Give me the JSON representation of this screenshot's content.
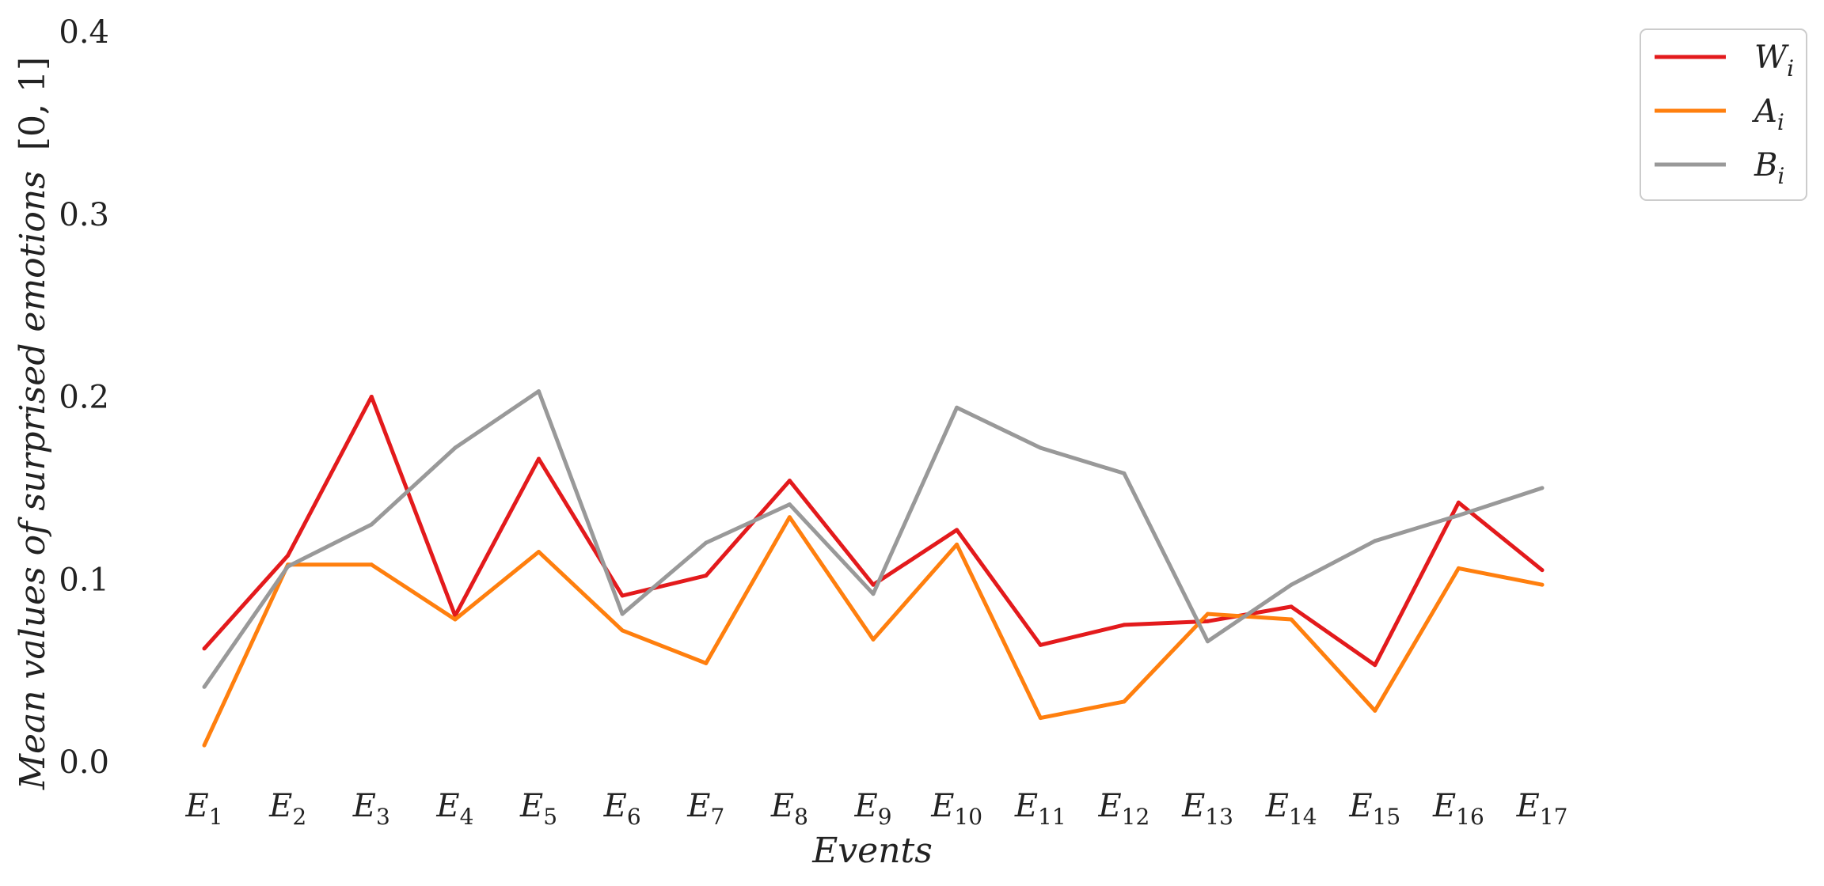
{
  "chart_data": {
    "type": "line",
    "xlabel": "Events",
    "ylabel_italic": "Mean values of surprised emotions",
    "ylabel_range": "[0, 1]",
    "ylim": [
      0.0,
      0.4
    ],
    "yticks": [
      "0.0",
      "0.1",
      "0.2",
      "0.3",
      "0.4"
    ],
    "grid": false,
    "legend_position": "top-right outside",
    "categories": [
      {
        "base": "E",
        "sub": "1"
      },
      {
        "base": "E",
        "sub": "2"
      },
      {
        "base": "E",
        "sub": "3"
      },
      {
        "base": "E",
        "sub": "4"
      },
      {
        "base": "E",
        "sub": "5"
      },
      {
        "base": "E",
        "sub": "6"
      },
      {
        "base": "E",
        "sub": "7"
      },
      {
        "base": "E",
        "sub": "8"
      },
      {
        "base": "E",
        "sub": "9"
      },
      {
        "base": "E",
        "sub": "10"
      },
      {
        "base": "E",
        "sub": "11"
      },
      {
        "base": "E",
        "sub": "12"
      },
      {
        "base": "E",
        "sub": "13"
      },
      {
        "base": "E",
        "sub": "14"
      },
      {
        "base": "E",
        "sub": "15"
      },
      {
        "base": "E",
        "sub": "16"
      },
      {
        "base": "E",
        "sub": "17"
      }
    ],
    "series": [
      {
        "name": "W",
        "sub": "i",
        "color": "#e31a1c",
        "values": [
          0.062,
          0.113,
          0.2,
          0.08,
          0.166,
          0.091,
          0.102,
          0.154,
          0.097,
          0.127,
          0.064,
          0.075,
          0.077,
          0.085,
          0.053,
          0.142,
          0.105
        ]
      },
      {
        "name": "A",
        "sub": "i",
        "color": "#ff7f0e",
        "values": [
          0.009,
          0.108,
          0.108,
          0.078,
          0.115,
          0.072,
          0.054,
          0.134,
          0.067,
          0.119,
          0.024,
          0.033,
          0.081,
          0.078,
          0.028,
          0.106,
          0.097
        ]
      },
      {
        "name": "B",
        "sub": "i",
        "color": "#999999",
        "values": [
          0.041,
          0.107,
          0.13,
          0.172,
          0.203,
          0.081,
          0.12,
          0.141,
          0.092,
          0.194,
          0.172,
          0.158,
          0.066,
          0.097,
          0.121,
          0.135,
          0.15
        ]
      }
    ]
  }
}
